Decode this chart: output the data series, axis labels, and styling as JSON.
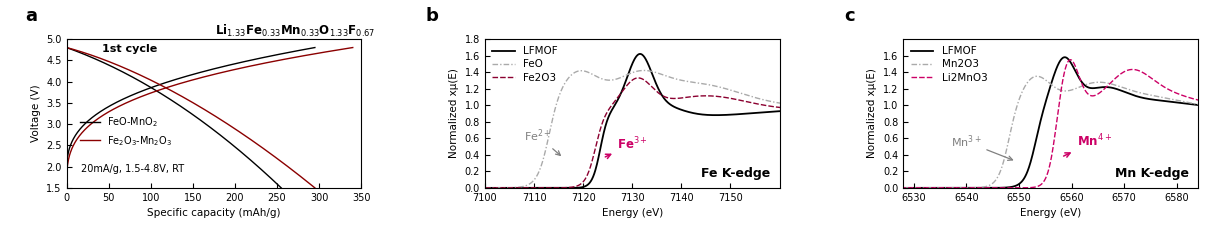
{
  "panel_a": {
    "xlabel": "Specific capacity (mAh/g)",
    "ylabel": "Voltage (V)",
    "xlim": [
      0,
      350
    ],
    "ylim": [
      1.5,
      5.0
    ],
    "xticks": [
      0,
      50,
      100,
      150,
      200,
      250,
      300,
      350
    ],
    "yticks": [
      1.5,
      2.0,
      2.5,
      3.0,
      3.5,
      4.0,
      4.5,
      5.0
    ],
    "label1": "FeO-MnO$_2$",
    "label2": "Fe$_2$O$_3$-Mn$_2$O$_3$",
    "note": "1st cycle",
    "conditions": "20mA/g, 1.5-4.8V, RT",
    "color1": "black",
    "color2": "#8b0000",
    "title": "Li$_{1.33}$Fe$_{0.33}$Mn$_{0.33}$O$_{1.33}$F$_{0.67}$"
  },
  "panel_b": {
    "xlabel": "Energy (eV)",
    "ylabel": "Normalized xμ(E)",
    "xlim": [
      7100,
      7160
    ],
    "ylim": [
      0.0,
      1.8
    ],
    "xticks": [
      7100,
      7110,
      7120,
      7130,
      7140,
      7150
    ],
    "yticks": [
      0.0,
      0.2,
      0.4,
      0.6,
      0.8,
      1.0,
      1.2,
      1.4,
      1.6,
      1.8
    ],
    "label_inset": "Fe K-edge",
    "legend1": "LFMOF",
    "legend2": "FeO",
    "legend3": "Fe2O3",
    "color1": "black",
    "color2": "#aaaaaa",
    "color3": "#8b0030",
    "annotation_fe2": "Fe$^{2+}$",
    "annotation_fe3": "Fe$^{3+}$"
  },
  "panel_c": {
    "xlabel": "Energy (eV)",
    "ylabel": "Normalized xμ(E)",
    "xlim": [
      6528,
      6584
    ],
    "ylim": [
      0.0,
      1.8
    ],
    "xticks": [
      6530,
      6540,
      6550,
      6560,
      6570,
      6580
    ],
    "yticks": [
      0.0,
      0.2,
      0.4,
      0.6,
      0.8,
      1.0,
      1.2,
      1.4,
      1.6
    ],
    "label_inset": "Mn K-edge",
    "legend1": "LFMOF",
    "legend2": "Mn2O3",
    "legend3": "Li2MnO3",
    "color1": "black",
    "color2": "#aaaaaa",
    "color3": "#cc0066",
    "annotation_mn3": "Mn$^{3+}$",
    "annotation_mn4": "Mn$^{4+}$"
  }
}
